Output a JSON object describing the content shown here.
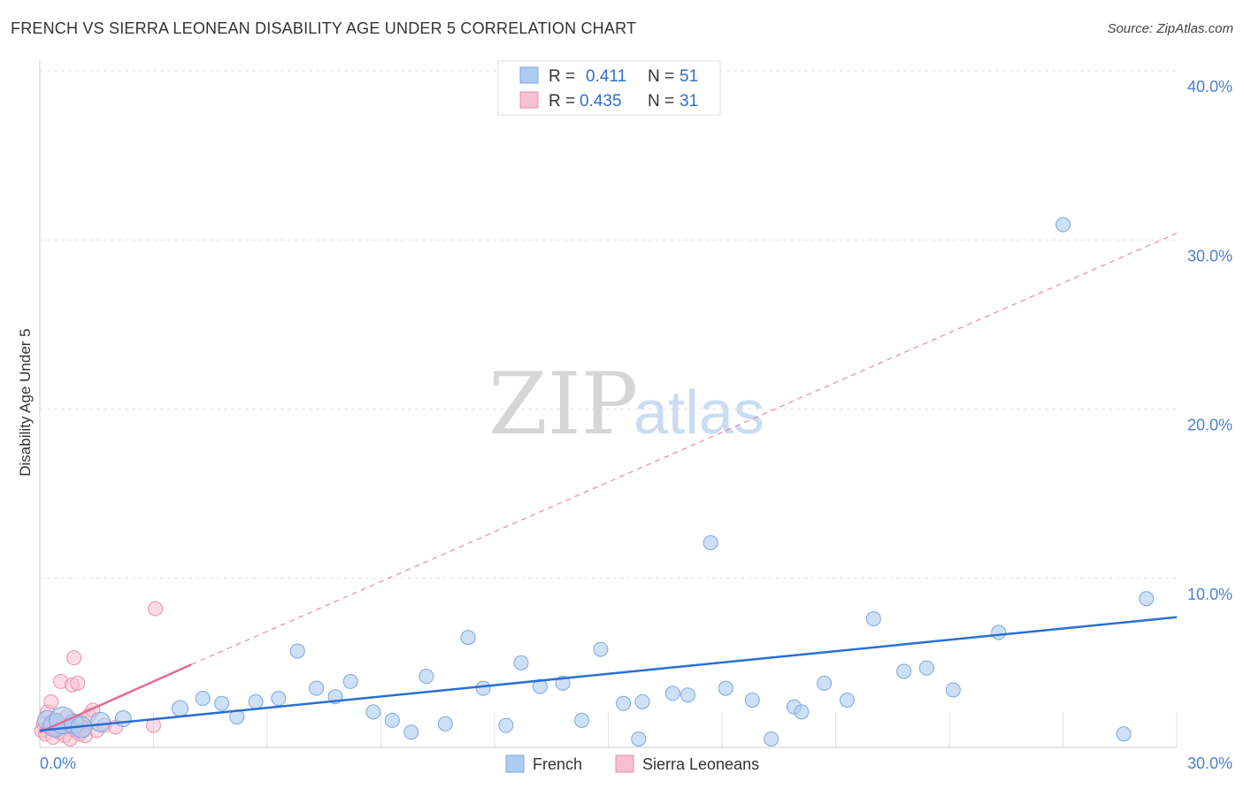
{
  "title": "FRENCH VS SIERRA LEONEAN DISABILITY AGE UNDER 5 CORRELATION CHART",
  "source": "Source: ZipAtlas.com",
  "colors": {
    "french_fill": "#aecbf0",
    "french_stroke": "#7aa6e0",
    "french_line": "#2a6fd1",
    "sierra_fill": "#f7bfd0",
    "sierra_stroke": "#ea8fb0",
    "sierra_line": "#e56a96",
    "grid": "#e3e3e3",
    "tick_text": "#4a7fd0"
  },
  "legend": {
    "french": {
      "r_label": "R =",
      "r_value": "0.411",
      "n_label": "N =",
      "n_value": "51"
    },
    "sierra": {
      "r_label": "R =",
      "r_value": "0.435",
      "n_label": "N =",
      "n_value": "31"
    }
  },
  "bottom_legend": {
    "french": "French",
    "sierra": "Sierra Leoneans"
  },
  "watermark": {
    "zip": "ZIP",
    "atlas": "atlas"
  },
  "chart_data": {
    "type": "scatter",
    "title": "FRENCH VS SIERRA LEONEAN DISABILITY AGE UNDER 5 CORRELATION CHART",
    "xlabel": "",
    "ylabel": "Disability Age Under 5",
    "xlim": [
      0,
      30
    ],
    "ylim": [
      0,
      40
    ],
    "x_tick_labels": [
      "0.0%",
      "30.0%"
    ],
    "y_ticks": [
      10,
      20,
      30,
      40
    ],
    "y_tick_labels": [
      "10.0%",
      "20.0%",
      "30.0%",
      "40.0%"
    ],
    "grid": true,
    "series": [
      {
        "name": "French",
        "r": 0.411,
        "n": 51,
        "points": [
          [
            0.2,
            1.6,
            12
          ],
          [
            0.4,
            1.3,
            14
          ],
          [
            0.6,
            1.6,
            16
          ],
          [
            0.9,
            1.4,
            12
          ],
          [
            1.1,
            1.2,
            13
          ],
          [
            1.6,
            1.5,
            12
          ],
          [
            2.2,
            1.7,
            10
          ],
          [
            3.7,
            2.3,
            10
          ],
          [
            4.3,
            2.9,
            9
          ],
          [
            4.8,
            2.6,
            9
          ],
          [
            5.2,
            1.8,
            9
          ],
          [
            5.7,
            2.7,
            9
          ],
          [
            6.3,
            2.9,
            9
          ],
          [
            6.8,
            5.7,
            9
          ],
          [
            7.3,
            3.5,
            9
          ],
          [
            7.8,
            3.0,
            9
          ],
          [
            8.2,
            3.9,
            9
          ],
          [
            8.8,
            2.1,
            9
          ],
          [
            9.3,
            1.6,
            9
          ],
          [
            9.8,
            0.9,
            9
          ],
          [
            10.2,
            4.2,
            9
          ],
          [
            10.7,
            1.4,
            9
          ],
          [
            11.3,
            6.5,
            9
          ],
          [
            11.7,
            3.5,
            9
          ],
          [
            12.3,
            1.3,
            9
          ],
          [
            12.7,
            5.0,
            9
          ],
          [
            13.2,
            3.6,
            9
          ],
          [
            13.8,
            3.8,
            9
          ],
          [
            14.3,
            1.6,
            9
          ],
          [
            14.8,
            5.8,
            9
          ],
          [
            15.4,
            2.6,
            9
          ],
          [
            15.8,
            0.5,
            9
          ],
          [
            15.9,
            2.7,
            9
          ],
          [
            16.7,
            3.2,
            9
          ],
          [
            17.1,
            3.1,
            9
          ],
          [
            17.7,
            12.1,
            9
          ],
          [
            18.1,
            3.5,
            9
          ],
          [
            18.8,
            2.8,
            9
          ],
          [
            19.3,
            0.5,
            9
          ],
          [
            19.9,
            2.4,
            9
          ],
          [
            20.1,
            2.1,
            9
          ],
          [
            20.7,
            3.8,
            9
          ],
          [
            21.3,
            2.8,
            9
          ],
          [
            22.0,
            7.6,
            9
          ],
          [
            22.8,
            4.5,
            9
          ],
          [
            23.4,
            4.7,
            9
          ],
          [
            24.1,
            3.4,
            9
          ],
          [
            25.3,
            6.8,
            9
          ],
          [
            27.0,
            30.9,
            9
          ],
          [
            28.6,
            0.8,
            9
          ],
          [
            29.2,
            8.8,
            9
          ]
        ],
        "trendline": {
          "x": [
            0.0,
            30.0
          ],
          "y": [
            1.0,
            7.7
          ]
        }
      },
      {
        "name": "Sierra Leoneans",
        "r": 0.435,
        "n": 31,
        "points": [
          [
            0.05,
            1.0,
            9
          ],
          [
            0.1,
            1.4,
            9
          ],
          [
            0.15,
            0.8,
            9
          ],
          [
            0.2,
            2.1,
            9
          ],
          [
            0.25,
            1.2,
            9
          ],
          [
            0.3,
            2.7,
            9
          ],
          [
            0.35,
            0.6,
            9
          ],
          [
            0.4,
            1.1,
            9
          ],
          [
            0.45,
            1.6,
            9
          ],
          [
            0.5,
            0.9,
            9
          ],
          [
            0.55,
            3.9,
            9
          ],
          [
            0.6,
            1.3,
            9
          ],
          [
            0.65,
            0.7,
            9
          ],
          [
            0.7,
            1.8,
            9
          ],
          [
            0.75,
            1.2,
            9
          ],
          [
            0.8,
            0.5,
            9
          ],
          [
            0.85,
            3.7,
            9
          ],
          [
            0.9,
            5.3,
            9
          ],
          [
            0.95,
            1.0,
            9
          ],
          [
            1.0,
            3.8,
            9
          ],
          [
            1.05,
            0.8,
            9
          ],
          [
            1.1,
            1.5,
            9
          ],
          [
            1.15,
            1.1,
            9
          ],
          [
            1.2,
            0.7,
            9
          ],
          [
            1.3,
            1.9,
            9
          ],
          [
            1.4,
            2.2,
            9
          ],
          [
            1.5,
            1.0,
            9
          ],
          [
            1.7,
            1.3,
            9
          ],
          [
            2.0,
            1.2,
            9
          ],
          [
            3.0,
            1.3,
            9
          ],
          [
            3.05,
            8.2,
            9
          ]
        ],
        "trendline": {
          "x": [
            0.0,
            4.0
          ],
          "y": [
            0.9,
            4.9
          ]
        },
        "trendline_extension": {
          "x": [
            4.0,
            30.0
          ],
          "y": [
            4.9,
            30.4
          ]
        }
      }
    ]
  }
}
